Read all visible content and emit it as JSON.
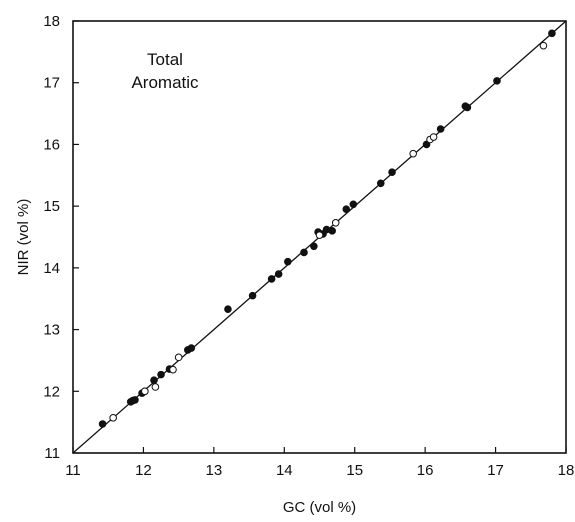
{
  "chart_data": {
    "type": "scatter",
    "title": "",
    "xlabel": "GC (vol %)",
    "ylabel": "NIR (vol %)",
    "xlim": [
      11,
      18
    ],
    "ylim": [
      11,
      18
    ],
    "xticks": [
      "11",
      "12",
      "13",
      "14",
      "15",
      "16",
      "17",
      "18"
    ],
    "yticks": [
      "11",
      "12",
      "13",
      "14",
      "15",
      "16",
      "17",
      "18"
    ],
    "annotation_lines": [
      "Total",
      "Aromatic"
    ],
    "grid": false,
    "legend": "none",
    "colors": {
      "filled": "#111111",
      "open_fill": "#ffffff",
      "line": "#111111"
    },
    "line": {
      "type": "y=x",
      "x": [
        11,
        18
      ],
      "y": [
        11,
        18
      ]
    },
    "series": [
      {
        "marker": "filled-circle",
        "points": [
          [
            11.42,
            11.47
          ],
          [
            11.82,
            11.83
          ],
          [
            11.85,
            11.85
          ],
          [
            11.88,
            11.86
          ],
          [
            11.98,
            11.97
          ],
          [
            12.02,
            12.0
          ],
          [
            12.15,
            12.18
          ],
          [
            12.25,
            12.27
          ],
          [
            12.37,
            12.36
          ],
          [
            12.63,
            12.67
          ],
          [
            12.68,
            12.7
          ],
          [
            13.2,
            13.33
          ],
          [
            13.55,
            13.55
          ],
          [
            13.82,
            13.82
          ],
          [
            13.92,
            13.9
          ],
          [
            14.05,
            14.1
          ],
          [
            14.28,
            14.25
          ],
          [
            14.42,
            14.35
          ],
          [
            14.48,
            14.58
          ],
          [
            14.55,
            14.55
          ],
          [
            14.6,
            14.62
          ],
          [
            14.68,
            14.6
          ],
          [
            14.88,
            14.95
          ],
          [
            14.98,
            15.03
          ],
          [
            15.37,
            15.37
          ],
          [
            15.53,
            15.55
          ],
          [
            16.02,
            16.0
          ],
          [
            16.22,
            16.25
          ],
          [
            16.57,
            16.62
          ],
          [
            16.6,
            16.6
          ],
          [
            17.02,
            17.03
          ],
          [
            17.8,
            17.8
          ]
        ]
      },
      {
        "marker": "open-circle",
        "points": [
          [
            11.57,
            11.57
          ],
          [
            12.02,
            12.0
          ],
          [
            12.17,
            12.07
          ],
          [
            12.42,
            12.35
          ],
          [
            12.5,
            12.55
          ],
          [
            14.5,
            14.53
          ],
          [
            14.73,
            14.73
          ],
          [
            15.83,
            15.85
          ],
          [
            16.07,
            16.08
          ],
          [
            16.12,
            16.12
          ],
          [
            17.68,
            17.6
          ]
        ]
      }
    ]
  }
}
